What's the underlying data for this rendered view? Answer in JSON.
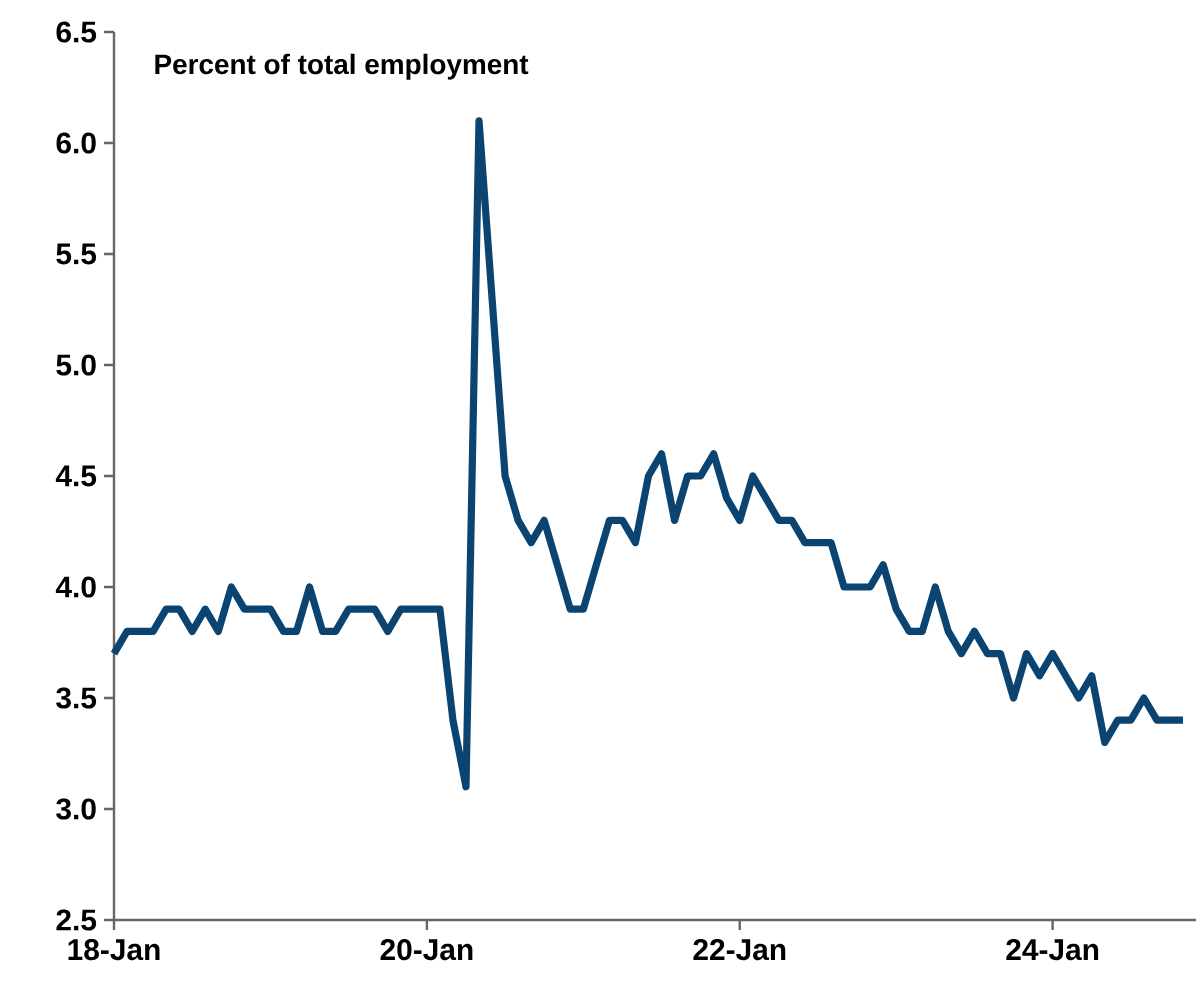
{
  "chart_data": {
    "type": "line",
    "title": "Percent of total employment",
    "x": [
      "2018-01",
      "2018-02",
      "2018-03",
      "2018-04",
      "2018-05",
      "2018-06",
      "2018-07",
      "2018-08",
      "2018-09",
      "2018-10",
      "2018-11",
      "2018-12",
      "2019-01",
      "2019-02",
      "2019-03",
      "2019-04",
      "2019-05",
      "2019-06",
      "2019-07",
      "2019-08",
      "2019-09",
      "2019-10",
      "2019-11",
      "2019-12",
      "2020-01",
      "2020-02",
      "2020-03",
      "2020-04",
      "2020-05",
      "2020-06",
      "2020-07",
      "2020-08",
      "2020-09",
      "2020-10",
      "2020-11",
      "2020-12",
      "2021-01",
      "2021-02",
      "2021-03",
      "2021-04",
      "2021-05",
      "2021-06",
      "2021-07",
      "2021-08",
      "2021-09",
      "2021-10",
      "2021-11",
      "2021-12",
      "2022-01",
      "2022-02",
      "2022-03",
      "2022-04",
      "2022-05",
      "2022-06",
      "2022-07",
      "2022-08",
      "2022-09",
      "2022-10",
      "2022-11",
      "2022-12",
      "2023-01",
      "2023-02",
      "2023-03",
      "2023-04",
      "2023-05",
      "2023-06",
      "2023-07",
      "2023-08",
      "2023-09",
      "2023-10",
      "2023-11",
      "2023-12",
      "2024-01",
      "2024-02",
      "2024-03",
      "2024-04",
      "2024-05",
      "2024-06",
      "2024-07",
      "2024-08",
      "2024-09",
      "2024-10",
      "2024-11"
    ],
    "series": [
      {
        "color": "#0b4470",
        "values": [
          3.7,
          3.8,
          3.8,
          3.8,
          3.9,
          3.9,
          3.8,
          3.9,
          3.8,
          4.0,
          3.9,
          3.9,
          3.9,
          3.8,
          3.8,
          4.0,
          3.8,
          3.8,
          3.9,
          3.9,
          3.9,
          3.8,
          3.9,
          3.9,
          3.9,
          3.9,
          3.4,
          3.1,
          6.1,
          5.3,
          4.5,
          4.3,
          4.2,
          4.3,
          4.1,
          3.9,
          3.9,
          4.1,
          4.3,
          4.3,
          4.2,
          4.5,
          4.6,
          4.3,
          4.5,
          4.5,
          4.6,
          4.4,
          4.3,
          4.5,
          4.4,
          4.3,
          4.3,
          4.2,
          4.2,
          4.2,
          4.0,
          4.0,
          4.0,
          4.1,
          3.9,
          3.8,
          3.8,
          4.0,
          3.8,
          3.7,
          3.8,
          3.7,
          3.7,
          3.5,
          3.7,
          3.6,
          3.7,
          3.6,
          3.5,
          3.6,
          3.3,
          3.4,
          3.4,
          3.5,
          3.4,
          3.4,
          3.4
        ]
      }
    ],
    "xlim": [
      "2018-01",
      "2024-12"
    ],
    "xticks": [
      {
        "value": "2018-01",
        "label": "18-Jan"
      },
      {
        "value": "2020-01",
        "label": "20-Jan"
      },
      {
        "value": "2022-01",
        "label": "22-Jan"
      },
      {
        "value": "2024-01",
        "label": "24-Jan"
      }
    ],
    "ylim": [
      2.5,
      6.5
    ],
    "yticks": [
      2.5,
      {
        "value": 3,
        "label": "3.0"
      },
      3.5,
      {
        "value": 4,
        "label": "4.0"
      },
      4.5,
      {
        "value": 5,
        "label": "5.0"
      },
      5.5,
      {
        "value": 6,
        "label": "6.0"
      },
      6.5
    ],
    "line_style": "solid"
  }
}
